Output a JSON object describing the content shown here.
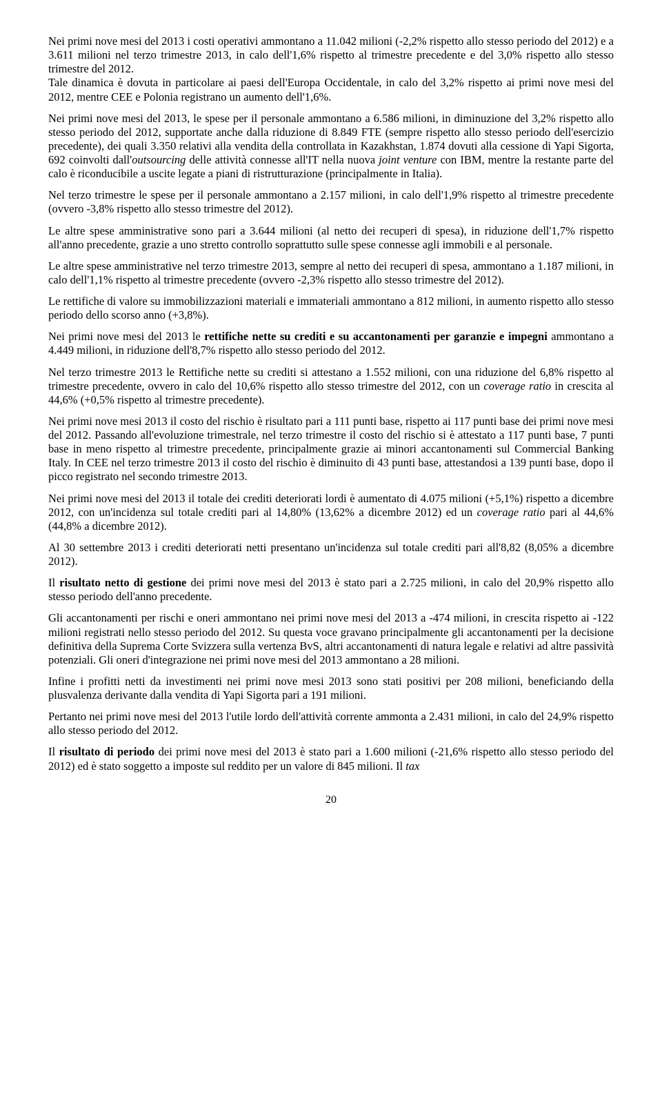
{
  "paragraphs": {
    "p1a": "Nei primi nove mesi del 2013 i costi operativi ammontano a 11.042 milioni (-2,2% rispetto allo stesso periodo del 2012) e a 3.611 milioni nel terzo trimestre 2013, in calo dell'1,6% rispetto al trimestre precedente e del 3,0% rispetto allo stesso trimestre del 2012.",
    "p1b": "Tale dinamica è dovuta in particolare ai paesi dell'Europa Occidentale, in calo del 3,2% rispetto ai primi nove mesi del 2012, mentre CEE e Polonia registrano un aumento dell'1,6%.",
    "p2a": "Nei primi nove mesi del 2013, le spese per il personale ammontano a 6.586 milioni, in diminuzione del 3,2% rispetto allo stesso periodo del 2012, supportate anche dalla riduzione di 8.849 FTE (sempre rispetto allo stesso periodo dell'esercizio precedente), dei quali 3.350 relativi alla vendita della controllata in Kazakhstan, 1.874 dovuti alla cessione di Yapi Sigorta, 692 coinvolti dall'",
    "p2b": "outsourcing",
    "p2c": " delle attività connesse all'IT nella nuova ",
    "p2d": "joint venture",
    "p2e": " con IBM, mentre la restante parte del calo è riconducibile a uscite legate a piani di ristrutturazione (principalmente in Italia).",
    "p3": "Nel terzo trimestre le spese per il personale ammontano a 2.157 milioni, in calo dell'1,9% rispetto al trimestre precedente (ovvero -3,8% rispetto allo stesso trimestre del 2012).",
    "p4": "Le altre spese amministrative sono pari a 3.644 milioni (al netto dei recuperi di spesa), in riduzione dell'1,7% rispetto all'anno precedente, grazie a uno stretto controllo soprattutto sulle spese connesse agli immobili e al personale.",
    "p5": "Le altre spese amministrative nel terzo trimestre 2013, sempre al netto dei recuperi di spesa, ammontano a 1.187 milioni, in calo dell'1,1% rispetto al trimestre precedente (ovvero -2,3% rispetto allo stesso trimestre del 2012).",
    "p6": "Le rettifiche di valore su immobilizzazioni materiali e immateriali ammontano a 812 milioni, in aumento rispetto allo stesso periodo dello scorso anno (+3,8%).",
    "p7a": "Nei primi nove mesi del 2013 le ",
    "p7b": "rettifiche nette su crediti e su accantonamenti per garanzie e impegni",
    "p7c": " ammontano a 4.449 milioni, in riduzione dell'8,7% rispetto allo stesso periodo del 2012.",
    "p8a": "Nel terzo trimestre 2013 le Rettifiche nette su crediti si attestano a 1.552 milioni, con una riduzione del 6,8% rispetto al trimestre precedente, ovvero in calo del 10,6% rispetto allo stesso trimestre del 2012, con un ",
    "p8b": "coverage ratio",
    "p8c": " in crescita al 44,6% (+0,5% rispetto al trimestre precedente).",
    "p9": "Nei primi nove mesi 2013 il costo del rischio è risultato pari a 111 punti base, rispetto ai 117 punti base dei primi nove mesi del 2012. Passando all'evoluzione trimestrale, nel terzo trimestre il costo del rischio si è attestato a 117 punti base, 7 punti base in meno rispetto al trimestre precedente, principalmente grazie ai minori accantonamenti sul Commercial Banking Italy. In CEE nel terzo trimestre 2013 il costo del rischio è diminuito di 43 punti base, attestandosi a 139 punti base, dopo il picco registrato nel secondo trimestre 2013.",
    "p10a": "Nei primi nove mesi del 2013 il totale dei crediti deteriorati lordi è aumentato di 4.075 milioni (+5,1%) rispetto a dicembre 2012, con un'incidenza sul totale crediti pari al 14,80% (13,62% a dicembre 2012) ed un ",
    "p10b": "coverage ratio",
    "p10c": " pari al 44,6% (44,8% a dicembre 2012).",
    "p11": "Al 30 settembre 2013 i crediti deteriorati netti presentano un'incidenza sul totale crediti pari all'8,82 (8,05% a dicembre 2012).",
    "p12a": "Il ",
    "p12b": "risultato netto di gestione",
    "p12c": " dei primi nove mesi del 2013 è stato pari a 2.725 milioni, in calo del 20,9% rispetto allo stesso periodo dell'anno precedente.",
    "p13": "Gli accantonamenti per rischi e oneri ammontano nei primi nove mesi del 2013 a -474 milioni, in crescita rispetto ai -122 milioni registrati nello stesso periodo del 2012. Su questa voce gravano principalmente gli accantonamenti per la decisione definitiva della Suprema Corte Svizzera sulla vertenza BvS, altri accantonamenti di natura legale e relativi ad altre passività potenziali. Gli oneri d'integrazione nei primi nove mesi del 2013 ammontano a 28 milioni.",
    "p14": "Infine i profitti netti da investimenti nei primi nove mesi 2013 sono stati positivi per 208 milioni, beneficiando della plusvalenza derivante dalla vendita di Yapi Sigorta pari a 191 milioni.",
    "p15": "Pertanto nei primi nove mesi del 2013 l'utile lordo dell'attività corrente ammonta a 2.431 milioni, in calo del 24,9% rispetto allo stesso periodo del 2012.",
    "p16a": "Il ",
    "p16b": "risultato di periodo",
    "p16c": " dei primi nove mesi del 2013 è stato pari a 1.600 milioni (-21,6% rispetto allo stesso periodo del 2012) ed è stato soggetto a imposte sul reddito per un valore di 845 milioni. Il ",
    "p16d": "tax"
  },
  "pageNumber": "20"
}
